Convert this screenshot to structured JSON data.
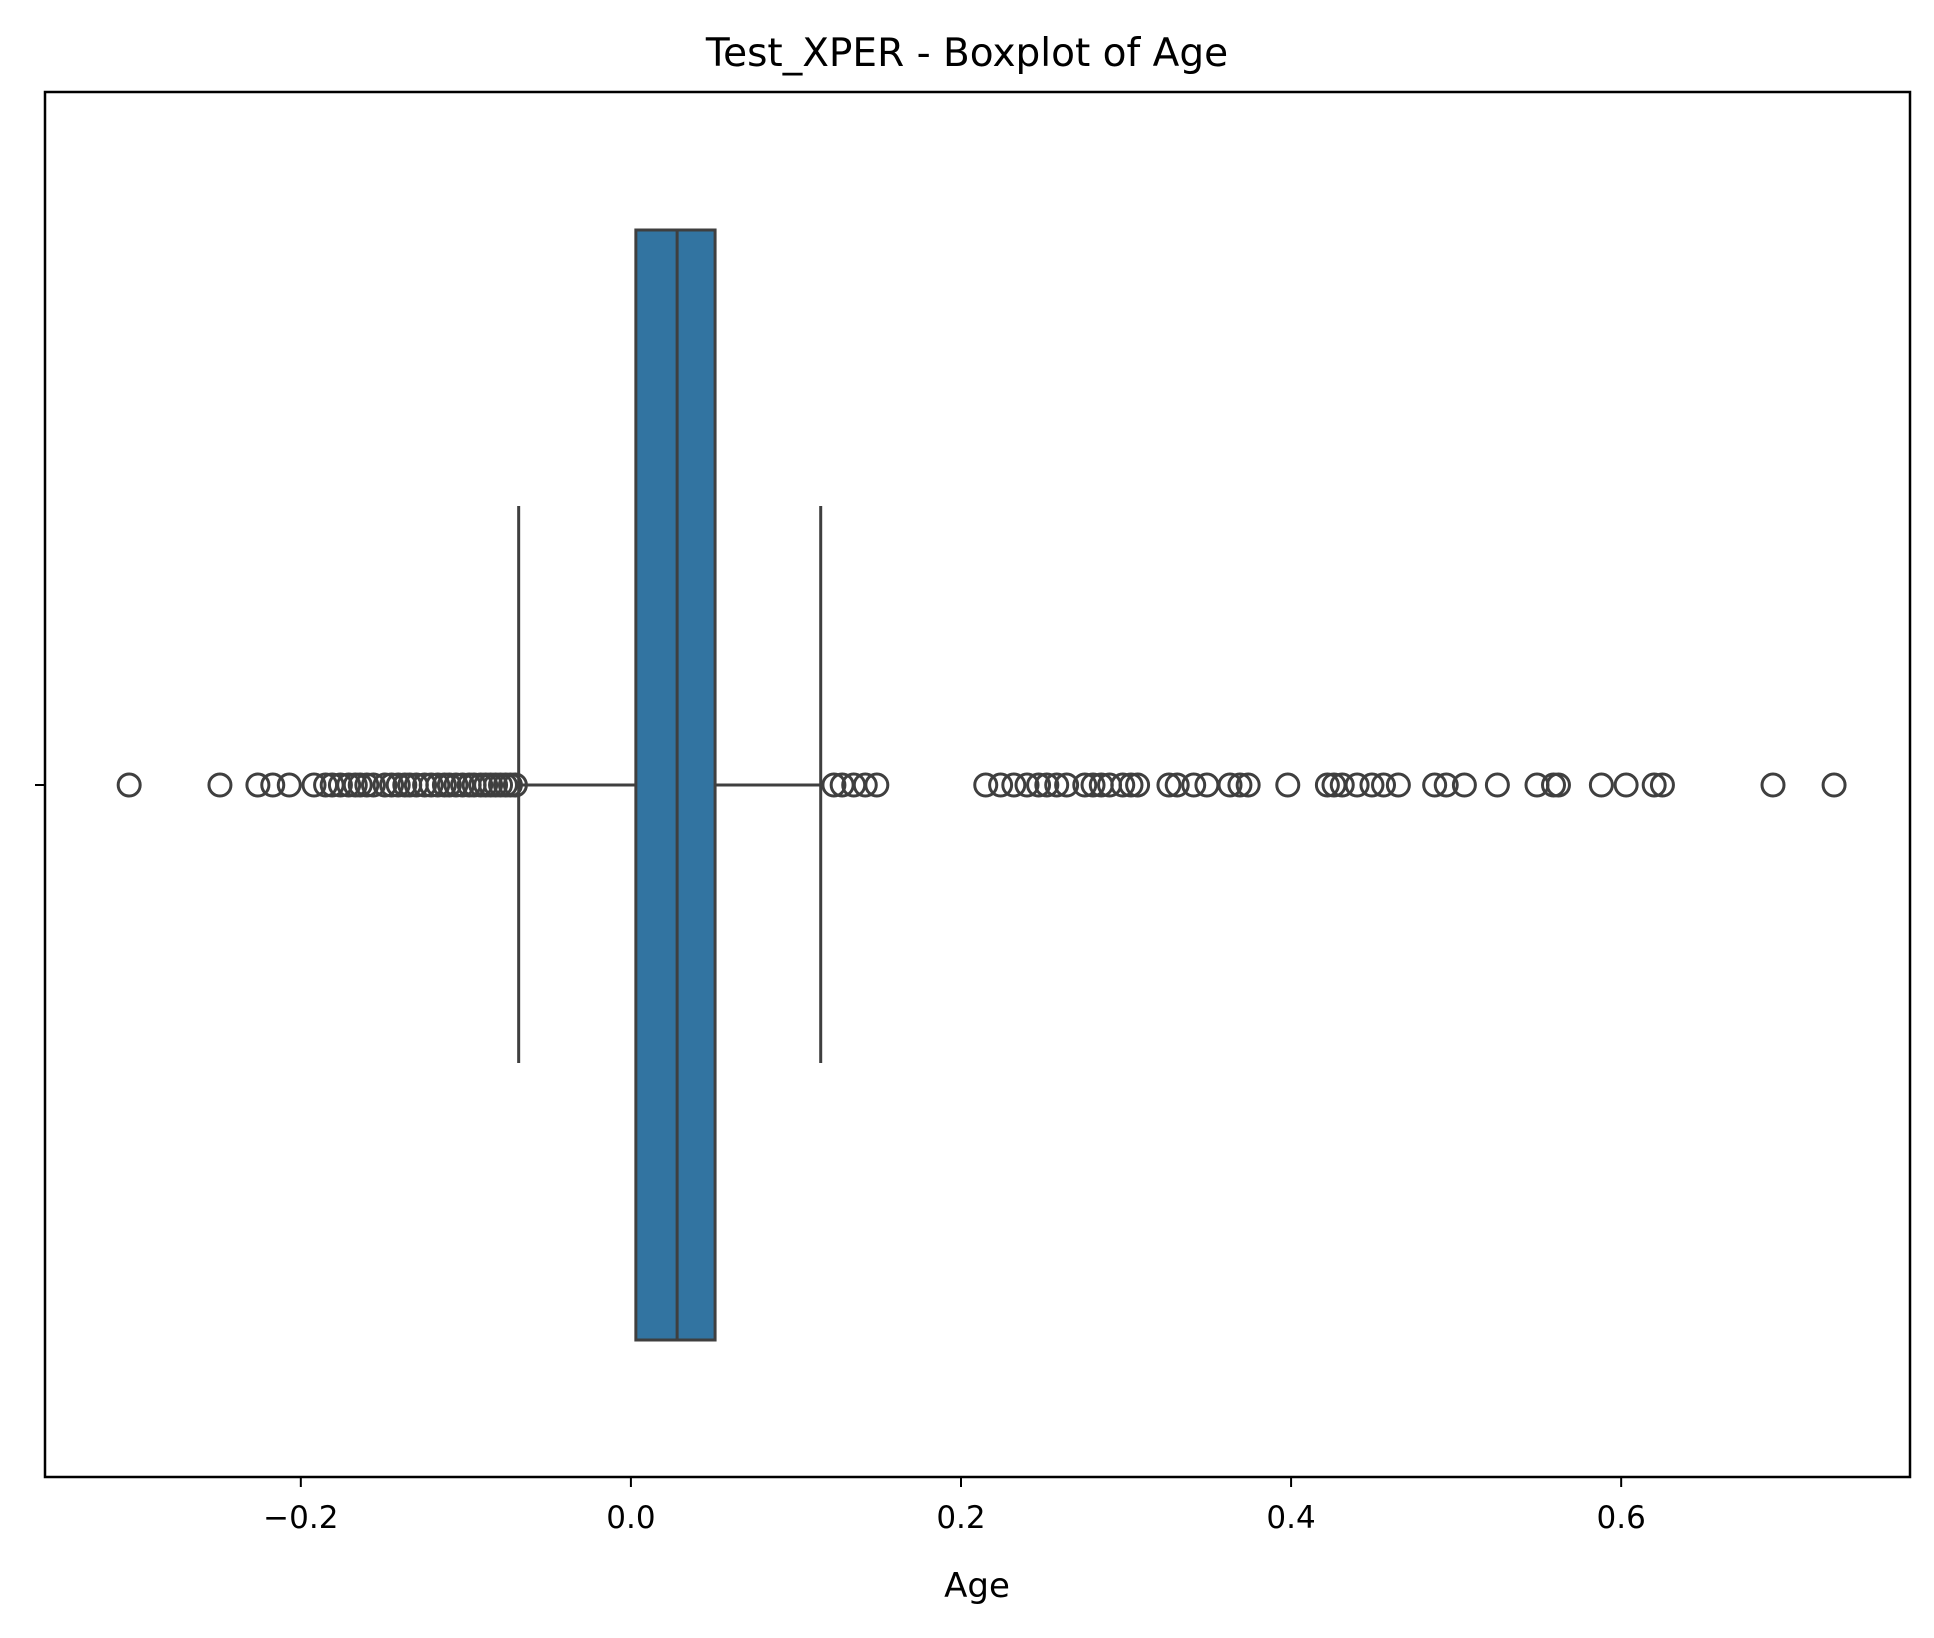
{
  "chart_data": {
    "type": "boxplot",
    "orientation": "horizontal",
    "title": "Test_XPER - Boxplot of Age",
    "xlabel": "Age",
    "ylabel": "",
    "xlim": [
      -0.355,
      0.775
    ],
    "xticks": [
      {
        "value": -0.2,
        "label": "−0.2"
      },
      {
        "value": 0.0,
        "label": "0.0"
      },
      {
        "value": 0.2,
        "label": "0.2"
      },
      {
        "value": 0.4,
        "label": "0.4"
      },
      {
        "value": 0.6,
        "label": "0.6"
      }
    ],
    "box": {
      "whisker_low": -0.068,
      "q1": 0.003,
      "median": 0.028,
      "q3": 0.051,
      "whisker_high": 0.115
    },
    "box_color": "#3274a1",
    "line_color": "#3f3f3f",
    "outliers": [
      -0.304,
      -0.249,
      -0.226,
      -0.217,
      -0.207,
      -0.192,
      -0.185,
      -0.181,
      -0.176,
      -0.171,
      -0.167,
      -0.164,
      -0.16,
      -0.156,
      -0.149,
      -0.145,
      -0.141,
      -0.137,
      -0.134,
      -0.13,
      -0.125,
      -0.121,
      -0.117,
      -0.113,
      -0.11,
      -0.106,
      -0.102,
      -0.098,
      -0.095,
      -0.091,
      -0.088,
      -0.085,
      -0.082,
      -0.079,
      -0.076,
      -0.073,
      -0.07,
      0.123,
      0.128,
      0.135,
      0.142,
      0.149,
      0.215,
      0.224,
      0.232,
      0.24,
      0.247,
      0.252,
      0.258,
      0.264,
      0.275,
      0.28,
      0.285,
      0.29,
      0.298,
      0.303,
      0.307,
      0.326,
      0.331,
      0.341,
      0.349,
      0.363,
      0.369,
      0.374,
      0.398,
      0.422,
      0.426,
      0.431,
      0.44,
      0.449,
      0.456,
      0.465,
      0.487,
      0.494,
      0.505,
      0.525,
      0.549,
      0.559,
      0.562,
      0.588,
      0.603,
      0.62,
      0.625,
      0.692,
      0.729
    ]
  }
}
